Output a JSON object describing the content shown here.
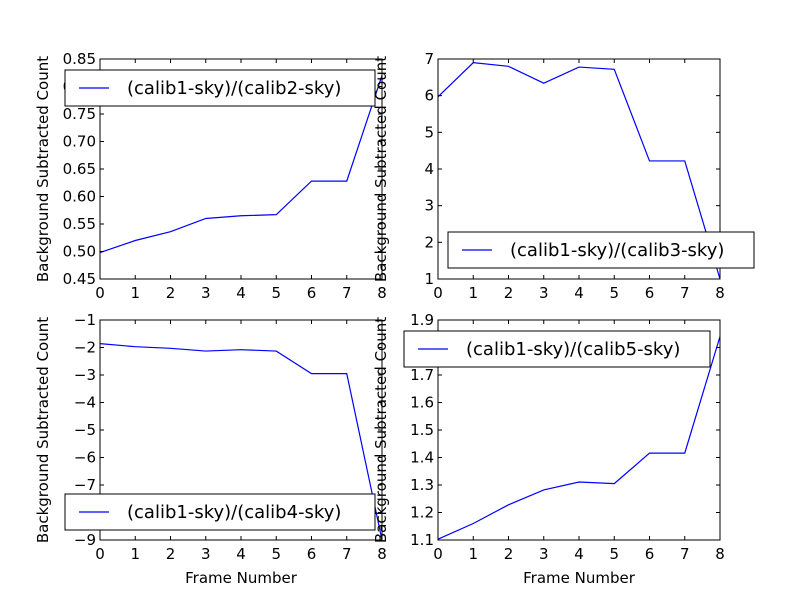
{
  "chart_data": [
    {
      "type": "line",
      "ylabel": "Background Subtracted Count",
      "xlabel": "",
      "x": [
        0,
        1,
        2,
        3,
        4,
        5,
        6,
        7,
        8
      ],
      "xlim": [
        0,
        8
      ],
      "ylim": [
        0.45,
        0.85
      ],
      "xticks": [
        0,
        1,
        2,
        3,
        4,
        5,
        6,
        7,
        8
      ],
      "yticks": [
        0.45,
        0.5,
        0.55,
        0.6,
        0.65,
        0.7,
        0.75,
        0.8,
        0.85
      ],
      "ytick_labels": [
        "0.45",
        "0.50",
        "0.55",
        "0.60",
        "0.65",
        "0.70",
        "0.75",
        "0.80",
        "0.85"
      ],
      "legend_position": "upper-left",
      "grid": false,
      "series": [
        {
          "name": "(calib1-sky)/(calib2-sky)",
          "color": "#0000ff",
          "values": [
            0.498,
            0.52,
            0.536,
            0.56,
            0.565,
            0.567,
            0.628,
            0.628,
            0.82
          ]
        }
      ]
    },
    {
      "type": "line",
      "ylabel": "Background Subtracted Count",
      "xlabel": "",
      "x": [
        0,
        1,
        2,
        3,
        4,
        5,
        6,
        7,
        8
      ],
      "xlim": [
        0,
        8
      ],
      "ylim": [
        1,
        7
      ],
      "xticks": [
        0,
        1,
        2,
        3,
        4,
        5,
        6,
        7,
        8
      ],
      "yticks": [
        1,
        2,
        3,
        4,
        5,
        6,
        7
      ],
      "ytick_labels": [
        "1",
        "2",
        "3",
        "4",
        "5",
        "6",
        "7"
      ],
      "legend_position": "lower-left",
      "grid": false,
      "series": [
        {
          "name": "(calib1-sky)/(calib3-sky)",
          "color": "#0000ff",
          "values": [
            5.97,
            6.9,
            6.8,
            6.34,
            6.78,
            6.72,
            4.22,
            4.22,
            1.0
          ]
        }
      ]
    },
    {
      "type": "line",
      "ylabel": "Background Subtracted Count",
      "xlabel": "Frame Number",
      "x": [
        0,
        1,
        2,
        3,
        4,
        5,
        6,
        7,
        8
      ],
      "xlim": [
        0,
        8
      ],
      "ylim": [
        -9,
        -1
      ],
      "xticks": [
        0,
        1,
        2,
        3,
        4,
        5,
        6,
        7,
        8
      ],
      "yticks": [
        -9,
        -8,
        -7,
        -6,
        -5,
        -4,
        -3,
        -2,
        -1
      ],
      "ytick_labels": [
        "−9",
        "−8",
        "−7",
        "−6",
        "−5",
        "−4",
        "−3",
        "−2",
        "−1"
      ],
      "legend_position": "lower-left",
      "grid": false,
      "series": [
        {
          "name": "(calib1-sky)/(calib4-sky)",
          "color": "#0000ff",
          "values": [
            -1.86,
            -1.97,
            -2.03,
            -2.13,
            -2.08,
            -2.13,
            -2.95,
            -2.95,
            -9.0
          ]
        }
      ]
    },
    {
      "type": "line",
      "ylabel": "Background Subtracted Count",
      "xlabel": "Frame Number",
      "x": [
        0,
        1,
        2,
        3,
        4,
        5,
        6,
        7,
        8
      ],
      "xlim": [
        0,
        8
      ],
      "ylim": [
        1.1,
        1.9
      ],
      "xticks": [
        0,
        1,
        2,
        3,
        4,
        5,
        6,
        7,
        8
      ],
      "yticks": [
        1.1,
        1.2,
        1.3,
        1.4,
        1.5,
        1.6,
        1.7,
        1.8,
        1.9
      ],
      "ytick_labels": [
        "1.1",
        "1.2",
        "1.3",
        "1.4",
        "1.5",
        "1.6",
        "1.7",
        "1.8",
        "1.9"
      ],
      "legend_position": "upper-left",
      "grid": false,
      "series": [
        {
          "name": "(calib1-sky)/(calib5-sky)",
          "color": "#0000ff",
          "values": [
            1.103,
            1.16,
            1.228,
            1.282,
            1.311,
            1.305,
            1.416,
            1.416,
            1.84
          ]
        }
      ]
    }
  ]
}
